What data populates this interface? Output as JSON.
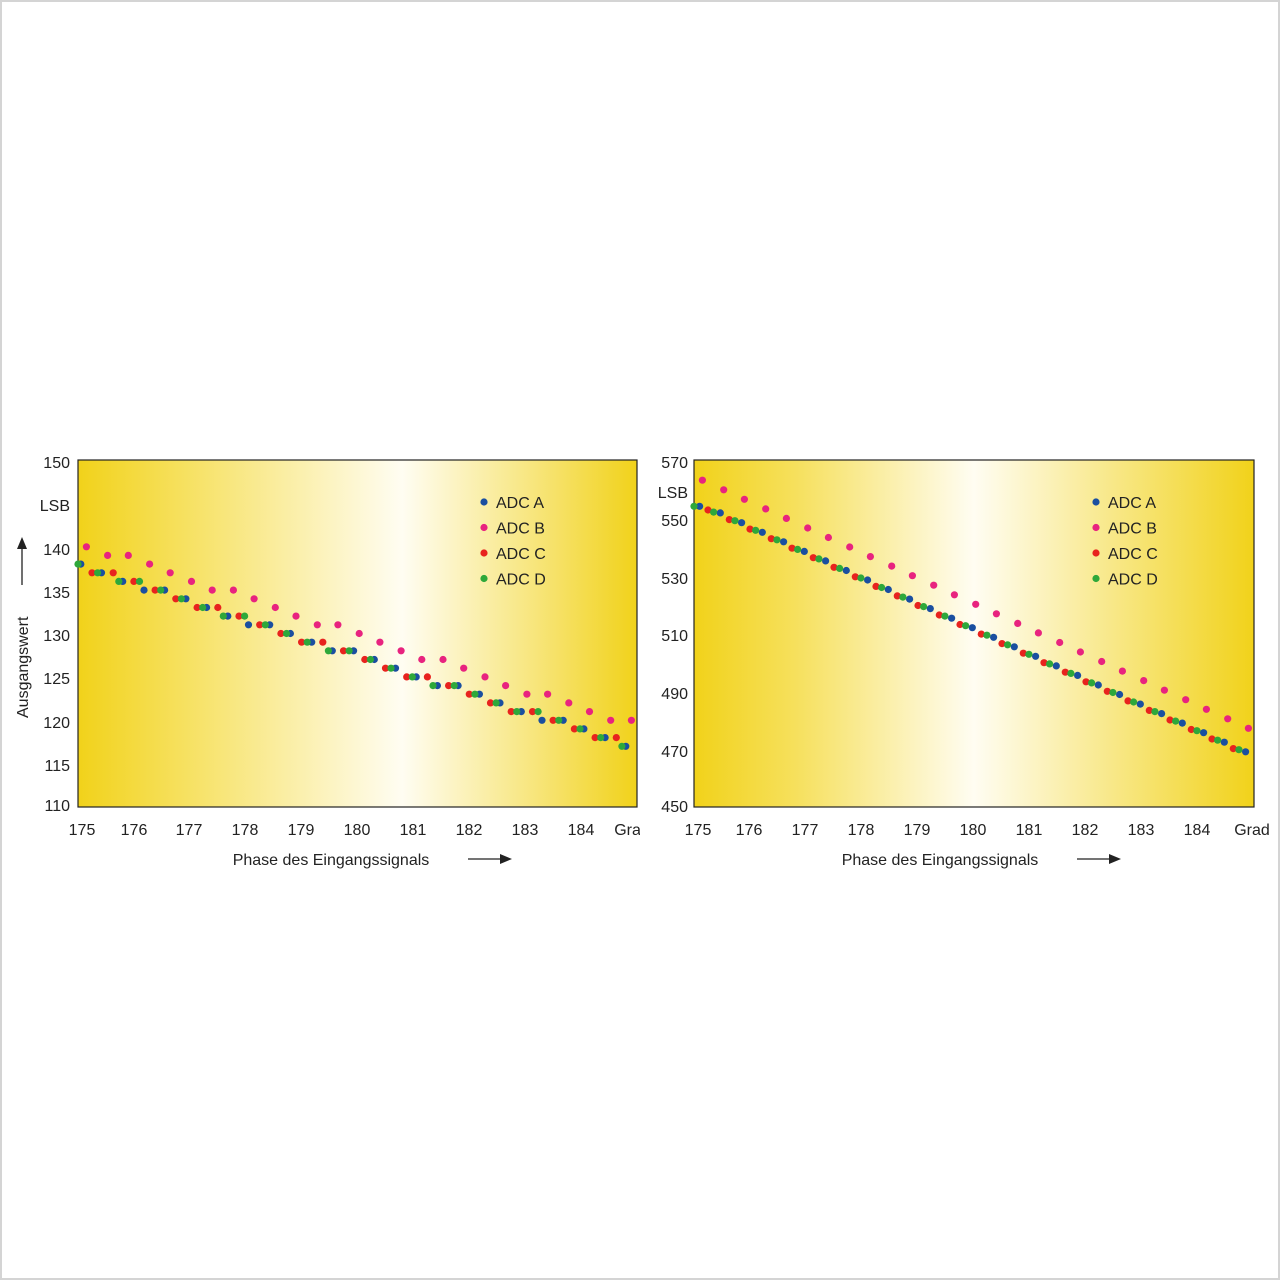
{
  "colors": {
    "adc_a": "#1a4fa0",
    "adc_b": "#e8237f",
    "adc_c": "#e8231e",
    "adc_d": "#2ea83a",
    "plot_gold": "#f1d21a",
    "plot_light": "#fffdf2"
  },
  "chart_data": [
    {
      "type": "scatter",
      "title": "",
      "xlabel": "Phase des Eingangssignals",
      "ylabel": "Ausgangswert",
      "y_unit": "LSB",
      "x_unit": "Grad",
      "xlim": [
        175,
        185
      ],
      "ylim": [
        110,
        150
      ],
      "x_ticks": [
        "175",
        "176",
        "177",
        "178",
        "179",
        "180",
        "181",
        "182",
        "183",
        "184",
        "Grad"
      ],
      "y_ticks": [
        "150",
        "LSB",
        "140",
        "135",
        "130",
        "125",
        "120",
        "115",
        "110"
      ],
      "legend": [
        "ADC A",
        "ADC B",
        "ADC C",
        "ADC D"
      ],
      "legend_position": "top-right",
      "series": [
        {
          "name": "ADC A",
          "color": "#1a4fa0",
          "points": [
            [
              175.05,
              138
            ],
            [
              175.42,
              137
            ],
            [
              175.8,
              136
            ],
            [
              176.18,
              135
            ],
            [
              176.55,
              135
            ],
            [
              176.93,
              134
            ],
            [
              177.3,
              133
            ],
            [
              177.68,
              132
            ],
            [
              178.05,
              131
            ],
            [
              178.43,
              131
            ],
            [
              178.8,
              130
            ],
            [
              179.18,
              129
            ],
            [
              179.55,
              128
            ],
            [
              179.93,
              128
            ],
            [
              180.3,
              127
            ],
            [
              180.68,
              126
            ],
            [
              181.05,
              125
            ],
            [
              181.43,
              124
            ],
            [
              181.8,
              124
            ],
            [
              182.18,
              123
            ],
            [
              182.55,
              122
            ],
            [
              182.93,
              121
            ],
            [
              183.3,
              120
            ],
            [
              183.68,
              120
            ],
            [
              184.05,
              119
            ],
            [
              184.43,
              118
            ],
            [
              184.8,
              117
            ]
          ]
        },
        {
          "name": "ADC B",
          "color": "#e8237f",
          "points": [
            [
              175.15,
              140
            ],
            [
              175.53,
              139
            ],
            [
              175.9,
              139
            ],
            [
              176.28,
              138
            ],
            [
              176.65,
              137
            ],
            [
              177.03,
              136
            ],
            [
              177.4,
              135
            ],
            [
              177.78,
              135
            ],
            [
              178.15,
              134
            ],
            [
              178.53,
              133
            ],
            [
              178.9,
              132
            ],
            [
              179.28,
              131
            ],
            [
              179.65,
              131
            ],
            [
              180.03,
              130
            ],
            [
              180.4,
              129
            ],
            [
              180.78,
              128
            ],
            [
              181.15,
              127
            ],
            [
              181.53,
              127
            ],
            [
              181.9,
              126
            ],
            [
              182.28,
              125
            ],
            [
              182.65,
              124
            ],
            [
              183.03,
              123
            ],
            [
              183.4,
              123
            ],
            [
              183.78,
              122
            ],
            [
              184.15,
              121
            ],
            [
              184.53,
              120
            ],
            [
              184.9,
              120
            ]
          ]
        },
        {
          "name": "ADC C",
          "color": "#e8231e",
          "points": [
            [
              175.25,
              137
            ],
            [
              175.63,
              137
            ],
            [
              176,
              136
            ],
            [
              176.38,
              135
            ],
            [
              176.75,
              134
            ],
            [
              177.13,
              133
            ],
            [
              177.5,
              133
            ],
            [
              177.88,
              132
            ],
            [
              178.25,
              131
            ],
            [
              178.63,
              130
            ],
            [
              179,
              129
            ],
            [
              179.38,
              129
            ],
            [
              179.75,
              128
            ],
            [
              180.13,
              127
            ],
            [
              180.5,
              126
            ],
            [
              180.88,
              125
            ],
            [
              181.25,
              125
            ],
            [
              181.63,
              124
            ],
            [
              182,
              123
            ],
            [
              182.38,
              122
            ],
            [
              182.75,
              121
            ],
            [
              183.13,
              121
            ],
            [
              183.5,
              120
            ],
            [
              183.88,
              119
            ],
            [
              184.25,
              118
            ],
            [
              184.63,
              118
            ]
          ]
        },
        {
          "name": "ADC D",
          "color": "#2ea83a",
          "points": [
            [
              175,
              138
            ],
            [
              175.35,
              137
            ],
            [
              175.73,
              136
            ],
            [
              176.1,
              136
            ],
            [
              176.48,
              135
            ],
            [
              176.85,
              134
            ],
            [
              177.23,
              133
            ],
            [
              177.6,
              132
            ],
            [
              177.98,
              132
            ],
            [
              178.35,
              131
            ],
            [
              178.73,
              130
            ],
            [
              179.1,
              129
            ],
            [
              179.48,
              128
            ],
            [
              179.85,
              128
            ],
            [
              180.23,
              127
            ],
            [
              180.6,
              126
            ],
            [
              180.98,
              125
            ],
            [
              181.35,
              124
            ],
            [
              181.73,
              124
            ],
            [
              182.1,
              123
            ],
            [
              182.48,
              122
            ],
            [
              182.85,
              121
            ],
            [
              183.23,
              121
            ],
            [
              183.6,
              120
            ],
            [
              183.98,
              119
            ],
            [
              184.35,
              118
            ],
            [
              184.73,
              117
            ]
          ]
        }
      ]
    },
    {
      "type": "scatter",
      "title": "",
      "xlabel": "Phase des Eingangssignals",
      "ylabel": "",
      "y_unit": "LSB",
      "x_unit": "Grad",
      "xlim": [
        175,
        185
      ],
      "ylim": [
        450,
        570
      ],
      "x_ticks": [
        "175",
        "176",
        "177",
        "178",
        "179",
        "180",
        "181",
        "182",
        "183",
        "184",
        "Grad"
      ],
      "y_ticks": [
        "570",
        "LSB",
        "550",
        "530",
        "510",
        "490",
        "470",
        "450"
      ],
      "legend": [
        "ADC A",
        "ADC B",
        "ADC C",
        "ADC D"
      ],
      "legend_position": "top-right",
      "series": [
        {
          "name": "ADC A",
          "color": "#1a4fa0",
          "points": [
            [
              175.1,
              554
            ],
            [
              175.47,
              551.7
            ],
            [
              175.85,
              548.3
            ],
            [
              176.22,
              545
            ],
            [
              176.6,
              541.7
            ],
            [
              176.97,
              538.4
            ],
            [
              177.35,
              535.1
            ],
            [
              177.72,
              531.8
            ],
            [
              178.1,
              528.5
            ],
            [
              178.47,
              525.2
            ],
            [
              178.85,
              521.9
            ],
            [
              179.22,
              518.6
            ],
            [
              179.6,
              515.3
            ],
            [
              179.97,
              512
            ],
            [
              180.35,
              508.7
            ],
            [
              180.72,
              505.4
            ],
            [
              181.1,
              502.1
            ],
            [
              181.47,
              498.8
            ],
            [
              181.85,
              495.5
            ],
            [
              182.22,
              492.2
            ],
            [
              182.6,
              488.9
            ],
            [
              182.97,
              485.6
            ],
            [
              183.35,
              482.3
            ],
            [
              183.72,
              479
            ],
            [
              184.1,
              475.7
            ],
            [
              184.47,
              472.4
            ],
            [
              184.85,
              469.1
            ]
          ]
        },
        {
          "name": "ADC B",
          "color": "#e8237f",
          "points": [
            [
              175.15,
              563
            ],
            [
              175.53,
              559.7
            ],
            [
              175.9,
              556.4
            ],
            [
              176.28,
              553.1
            ],
            [
              176.65,
              549.8
            ],
            [
              177.03,
              546.5
            ],
            [
              177.4,
              543.2
            ],
            [
              177.78,
              539.9
            ],
            [
              178.15,
              536.6
            ],
            [
              178.53,
              533.3
            ],
            [
              178.9,
              530
            ],
            [
              179.28,
              526.7
            ],
            [
              179.65,
              523.4
            ],
            [
              180.03,
              520.1
            ],
            [
              180.4,
              516.8
            ],
            [
              180.78,
              513.5
            ],
            [
              181.15,
              510.2
            ],
            [
              181.53,
              506.9
            ],
            [
              181.9,
              503.6
            ],
            [
              182.28,
              500.3
            ],
            [
              182.65,
              497
            ],
            [
              183.03,
              493.7
            ],
            [
              183.4,
              490.4
            ],
            [
              183.78,
              487.1
            ],
            [
              184.15,
              483.8
            ],
            [
              184.53,
              480.5
            ],
            [
              184.9,
              477.2
            ]
          ]
        },
        {
          "name": "ADC C",
          "color": "#e8231e",
          "points": [
            [
              175.25,
              552.7
            ],
            [
              175.63,
              549.4
            ],
            [
              176,
              546.1
            ],
            [
              176.38,
              542.8
            ],
            [
              176.75,
              539.5
            ],
            [
              177.13,
              536.2
            ],
            [
              177.5,
              532.9
            ],
            [
              177.88,
              529.6
            ],
            [
              178.25,
              526.3
            ],
            [
              178.63,
              523
            ],
            [
              179,
              519.7
            ],
            [
              179.38,
              516.4
            ],
            [
              179.75,
              513.1
            ],
            [
              180.13,
              509.8
            ],
            [
              180.5,
              506.5
            ],
            [
              180.88,
              503.2
            ],
            [
              181.25,
              499.9
            ],
            [
              181.63,
              496.6
            ],
            [
              182,
              493.3
            ],
            [
              182.38,
              490
            ],
            [
              182.75,
              486.7
            ],
            [
              183.13,
              483.4
            ],
            [
              183.5,
              480.1
            ],
            [
              183.88,
              476.8
            ],
            [
              184.25,
              473.5
            ],
            [
              184.63,
              470.2
            ]
          ]
        },
        {
          "name": "ADC D",
          "color": "#2ea83a",
          "points": [
            [
              175,
              554
            ],
            [
              175.35,
              552
            ],
            [
              175.73,
              549
            ],
            [
              176.1,
              545.7
            ],
            [
              176.48,
              542.4
            ],
            [
              176.85,
              539.1
            ],
            [
              177.23,
              535.8
            ],
            [
              177.6,
              532.5
            ],
            [
              177.98,
              529.2
            ],
            [
              178.35,
              525.9
            ],
            [
              178.73,
              522.6
            ],
            [
              179.1,
              519.3
            ],
            [
              179.48,
              516
            ],
            [
              179.85,
              512.7
            ],
            [
              180.23,
              509.4
            ],
            [
              180.6,
              506.1
            ],
            [
              180.98,
              502.8
            ],
            [
              181.35,
              499.5
            ],
            [
              181.73,
              496.2
            ],
            [
              182.1,
              492.9
            ],
            [
              182.48,
              489.6
            ],
            [
              182.85,
              486.3
            ],
            [
              183.23,
              483
            ],
            [
              183.6,
              479.7
            ],
            [
              183.98,
              476.4
            ],
            [
              184.35,
              473.1
            ],
            [
              184.73,
              469.8
            ]
          ]
        }
      ]
    }
  ]
}
